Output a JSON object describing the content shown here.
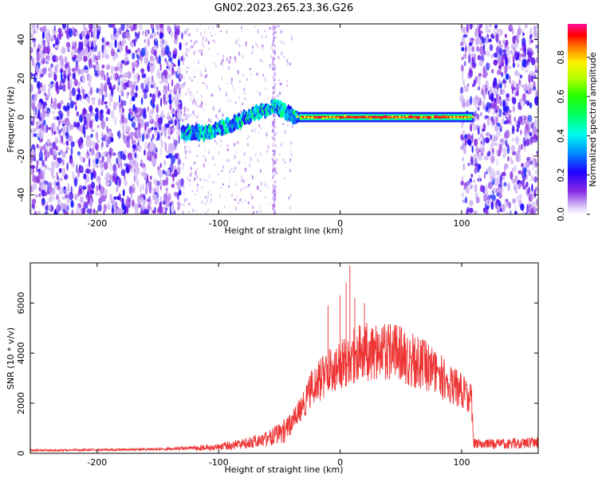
{
  "title": "GN02.2023.265.23.36.G26",
  "chart_data": [
    {
      "type": "heatmap",
      "xlabel": "Height of straight line (km)",
      "ylabel": "Frequency (Hz)",
      "xlim": [
        -255,
        163
      ],
      "ylim": [
        -50,
        48
      ],
      "xticks": [
        -200,
        -100,
        0,
        100
      ],
      "yticks": [
        -40,
        -20,
        0,
        20,
        40
      ],
      "colorbar": {
        "label": "Normalized spectral amplitude",
        "range": [
          0,
          0.97
        ],
        "ticks": [
          0.0,
          0.2,
          0.4,
          0.6,
          0.8
        ],
        "tick_labels": [
          "0.0",
          "0.2",
          "0.4",
          "0.6",
          "0.8"
        ],
        "colormap": "rainbow (purple → blue → cyan → green → yellow → red → magenta)"
      },
      "features": {
        "noise_left_x": [
          -255,
          -130
        ],
        "noise_right_x": [
          100,
          163
        ],
        "sparse_region_x": [
          -130,
          100
        ],
        "signal_trace": [
          [
            -130,
            -8
          ],
          [
            -110,
            -8
          ],
          [
            -100,
            -6
          ],
          [
            -90,
            -4
          ],
          [
            -80,
            -1
          ],
          [
            -70,
            2
          ],
          [
            -60,
            4
          ],
          [
            -55,
            6
          ],
          [
            -48,
            4
          ],
          [
            -40,
            1
          ],
          [
            -35,
            0
          ],
          [
            -20,
            0
          ],
          [
            0,
            0
          ],
          [
            50,
            0
          ],
          [
            110,
            0
          ]
        ],
        "strong_band_x": [
          -35,
          110
        ],
        "vertical_streak_x": -55
      }
    },
    {
      "type": "line",
      "xlabel": "Height of straight line (km)",
      "ylabel": "SNR (10 * v/v)",
      "xlim": [
        -255,
        163
      ],
      "ylim": [
        0,
        7600
      ],
      "xticks": [
        -200,
        -100,
        0,
        100
      ],
      "yticks": [
        0,
        2000,
        4000,
        6000
      ],
      "color": "#ee3333",
      "envelope_points": [
        [
          -255,
          150
        ],
        [
          -200,
          180
        ],
        [
          -150,
          220
        ],
        [
          -120,
          300
        ],
        [
          -100,
          400
        ],
        [
          -80,
          600
        ],
        [
          -60,
          900
        ],
        [
          -50,
          1200
        ],
        [
          -40,
          1600
        ],
        [
          -30,
          2500
        ],
        [
          -25,
          3200
        ],
        [
          -20,
          3600
        ],
        [
          -15,
          3900
        ],
        [
          -10,
          4200
        ],
        [
          0,
          4600
        ],
        [
          10,
          5000
        ],
        [
          20,
          5200
        ],
        [
          30,
          5300
        ],
        [
          40,
          5300
        ],
        [
          50,
          5100
        ],
        [
          60,
          4800
        ],
        [
          70,
          4500
        ],
        [
          80,
          4100
        ],
        [
          90,
          3600
        ],
        [
          100,
          3200
        ],
        [
          108,
          2800
        ],
        [
          110,
          600
        ],
        [
          120,
          550
        ],
        [
          140,
          600
        ],
        [
          163,
          700
        ]
      ],
      "peaks": [
        [
          -10,
          5900
        ],
        [
          0,
          6300
        ],
        [
          5,
          6800
        ],
        [
          8,
          7500
        ],
        [
          12,
          6200
        ],
        [
          20,
          6000
        ]
      ]
    }
  ]
}
